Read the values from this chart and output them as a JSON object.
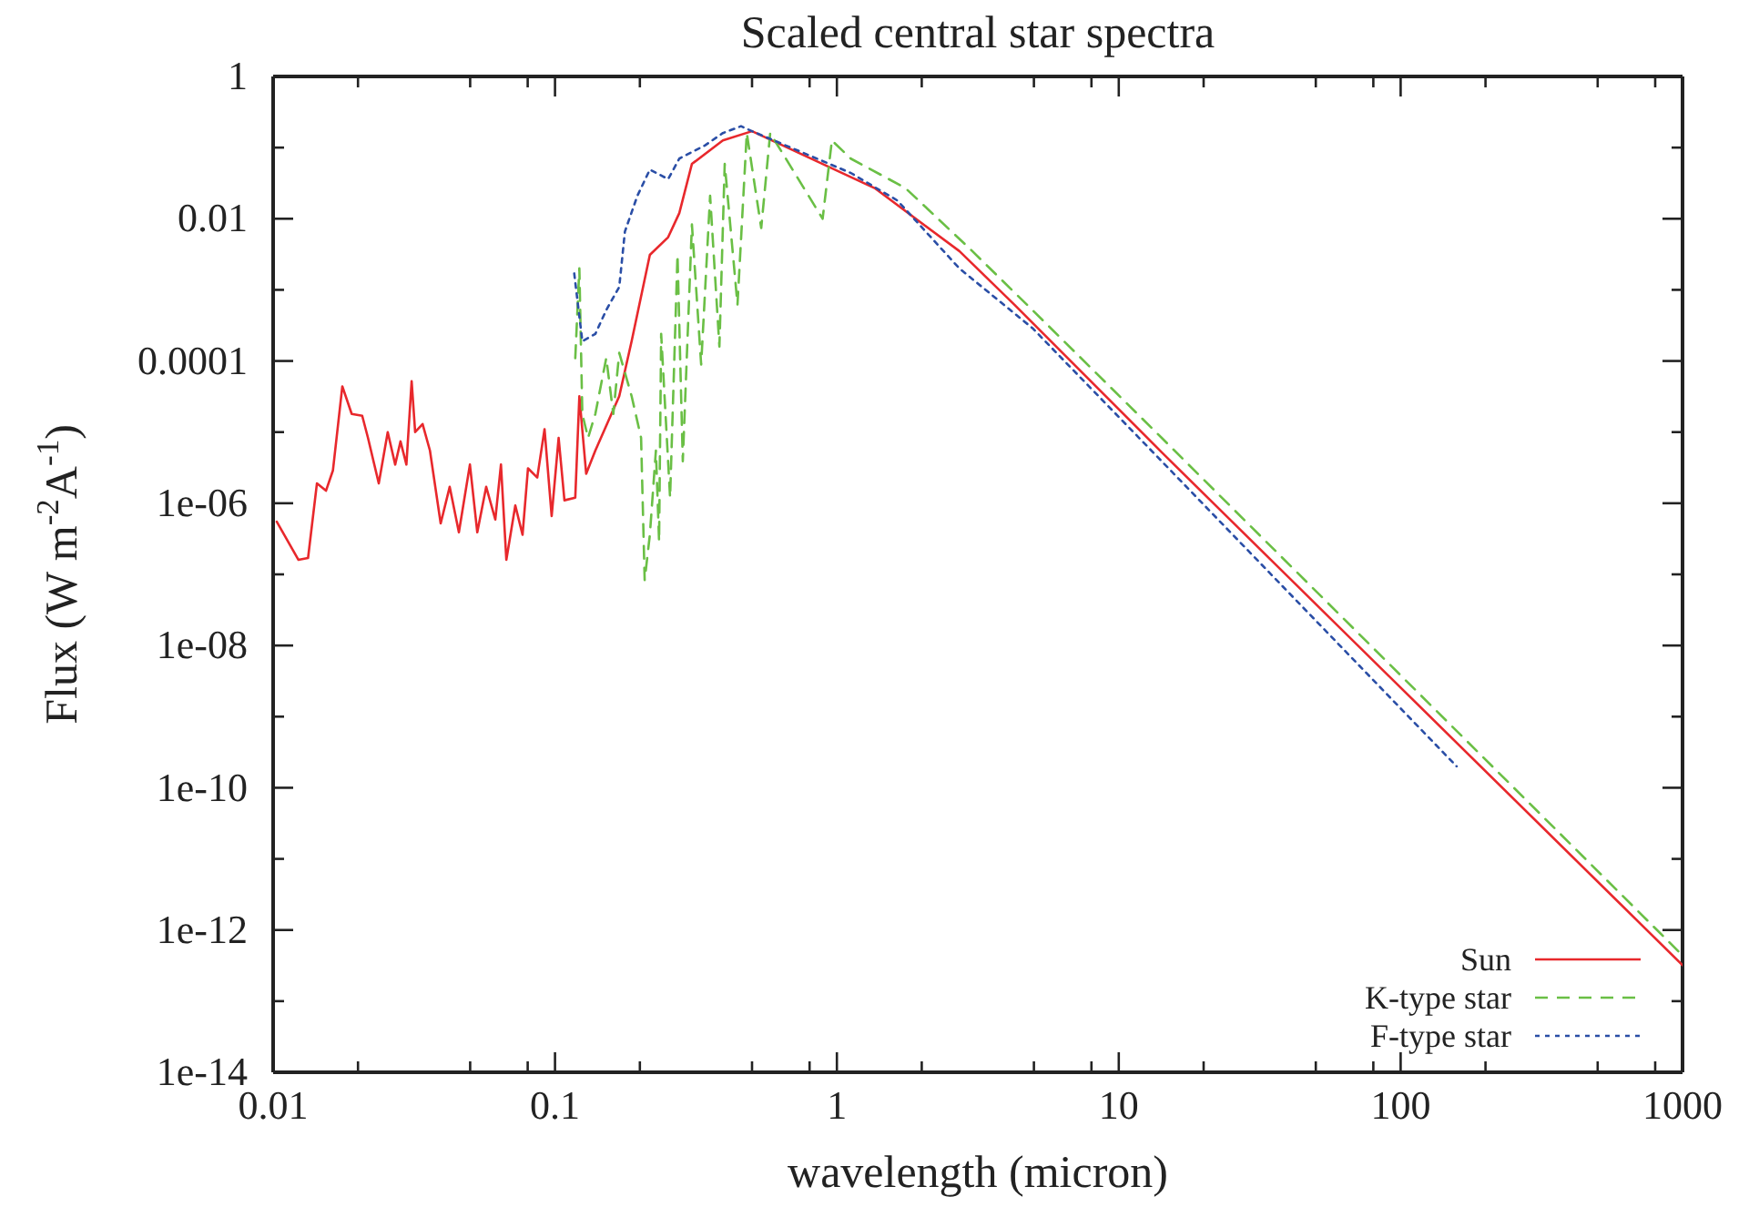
{
  "chart_data": {
    "type": "line",
    "title": "Scaled central star spectra",
    "xlabel": "wavelength (micron)",
    "ylabel": "Flux (W m$^{-2}$A$^{-1}$)",
    "log": "xy",
    "grid": false,
    "legend": "bottom right",
    "marker": "none",
    "xlim": [
      0.01,
      1000
    ],
    "ylim": [
      1e-14,
      1
    ],
    "xticks": [
      0.01,
      {
        "value": 0.02,
        "label": null
      },
      {
        "value": 0.05,
        "label": null
      },
      {
        "value": 0.08,
        "label": null
      },
      0.1,
      {
        "value": 0.2,
        "label": null
      },
      {
        "value": 0.5,
        "label": null
      },
      {
        "value": 0.8,
        "label": null
      },
      1,
      {
        "value": 2,
        "label": null
      },
      {
        "value": 5,
        "label": null
      },
      {
        "value": 8,
        "label": null
      },
      10,
      {
        "value": 20,
        "label": null
      },
      {
        "value": 50,
        "label": null
      },
      {
        "value": 80,
        "label": null
      },
      100,
      {
        "value": 200,
        "label": null
      },
      {
        "value": 500,
        "label": null
      },
      {
        "value": 800,
        "label": null
      },
      1000
    ],
    "yticks": [
      {
        "value": 1e-14,
        "label": "1e-14"
      },
      {
        "value": 1e-13,
        "label": null
      },
      {
        "value": 1e-12,
        "label": "1e-12"
      },
      {
        "value": 1e-11,
        "label": null
      },
      {
        "value": 1e-10,
        "label": "1e-10"
      },
      {
        "value": 1e-09,
        "label": null
      },
      {
        "value": 1e-08,
        "label": "1e-08"
      },
      {
        "value": 1e-07,
        "label": null
      },
      {
        "value": 1e-06,
        "label": "1e-06"
      },
      {
        "value": 1e-05,
        "label": null
      },
      {
        "value": 0.0001,
        "label": "0.0001"
      },
      {
        "value": 0.001,
        "label": null
      },
      0.01,
      {
        "value": 0.1,
        "label": null
      },
      1
    ],
    "series": [
      {
        "name": "Sun",
        "color": "#e8282c",
        "line_style": "solid",
        "x": [
          0.0103,
          0.0123,
          0.0133,
          0.0143,
          0.0154,
          0.0163,
          0.0176,
          0.019,
          0.0207,
          0.0217,
          0.0237,
          0.0255,
          0.0271,
          0.0283,
          0.0297,
          0.031,
          0.0319,
          0.0339,
          0.036,
          0.0393,
          0.0423,
          0.0456,
          0.0499,
          0.053,
          0.057,
          0.0614,
          0.0643,
          0.0672,
          0.0723,
          0.0767,
          0.0802,
          0.0865,
          0.0918,
          0.0973,
          0.103,
          0.108,
          0.118,
          0.122,
          0.129,
          0.139,
          0.169,
          0.187,
          0.217,
          0.252,
          0.276,
          0.306,
          0.394,
          0.5,
          1.36,
          2.72,
          4.26,
          14.2,
          1000
        ],
        "values": [
          5.5e-07,
          1.6e-07,
          1.7e-07,
          1.9e-06,
          1.5e-06,
          2.9e-06,
          4.4e-05,
          1.8e-05,
          1.7e-05,
          8.3e-06,
          1.9e-06,
          1e-05,
          3.5e-06,
          7.4e-06,
          3.5e-06,
          5.2e-05,
          1e-05,
          1.3e-05,
          5.5e-06,
          5.2e-07,
          1.7e-06,
          3.9e-07,
          3.5e-06,
          3.9e-07,
          1.7e-06,
          5.9e-07,
          3.5e-06,
          1.6e-07,
          9.3e-07,
          3.6e-07,
          3.1e-06,
          2.3e-06,
          1.1e-05,
          6.6e-07,
          8.3e-06,
          1.1e-06,
          1.2e-06,
          3.2e-05,
          2.6e-06,
          5.5e-06,
          3.2e-05,
          0.00019,
          0.0031,
          0.0055,
          0.012,
          0.059,
          0.126,
          0.17,
          0.027,
          0.0035,
          0.00062,
          5.2e-06,
          3.2e-13
        ]
      },
      {
        "name": "K-type star",
        "color": "#6abf45",
        "line_style": "dashed",
        "x": [
          0.118,
          0.122,
          0.125,
          0.131,
          0.139,
          0.152,
          0.161,
          0.169,
          0.187,
          0.202,
          0.208,
          0.217,
          0.228,
          0.234,
          0.238,
          0.256,
          0.272,
          0.284,
          0.306,
          0.33,
          0.355,
          0.383,
          0.4,
          0.444,
          0.479,
          0.539,
          0.58,
          0.89,
          0.96,
          1.12,
          1.75,
          2.98,
          4.94,
          14.2,
          1000
        ],
        "values": [
          0.00011,
          0.002,
          1.8e-05,
          8.3e-06,
          1.8e-05,
          0.00011,
          1.8e-05,
          0.00013,
          3.2e-05,
          8.3e-06,
          8.3e-08,
          3.6e-07,
          5.5e-06,
          2.9e-07,
          0.00024,
          1.2e-06,
          0.0031,
          3.9e-06,
          0.0083,
          8.9e-05,
          0.021,
          0.00016,
          0.059,
          0.00062,
          0.16,
          0.0074,
          0.16,
          0.01,
          0.126,
          0.07,
          0.027,
          0.0037,
          0.00052,
          8.3e-06,
          4.4e-13
        ]
      },
      {
        "name": "F-type star",
        "color": "#2a4ea6",
        "line_style": "dotted",
        "x": [
          0.117,
          0.125,
          0.139,
          0.152,
          0.169,
          0.177,
          0.196,
          0.217,
          0.252,
          0.276,
          0.34,
          0.394,
          0.457,
          0.5,
          1.12,
          1.64,
          2.72,
          4.94,
          14.2,
          158
        ],
        "values": [
          0.0017,
          0.00019,
          0.00024,
          0.00052,
          0.0011,
          0.0066,
          0.021,
          0.049,
          0.036,
          0.07,
          0.107,
          0.16,
          0.2,
          0.17,
          0.044,
          0.018,
          0.002,
          0.00029,
          3.9e-06,
          2e-10
        ]
      }
    ]
  }
}
